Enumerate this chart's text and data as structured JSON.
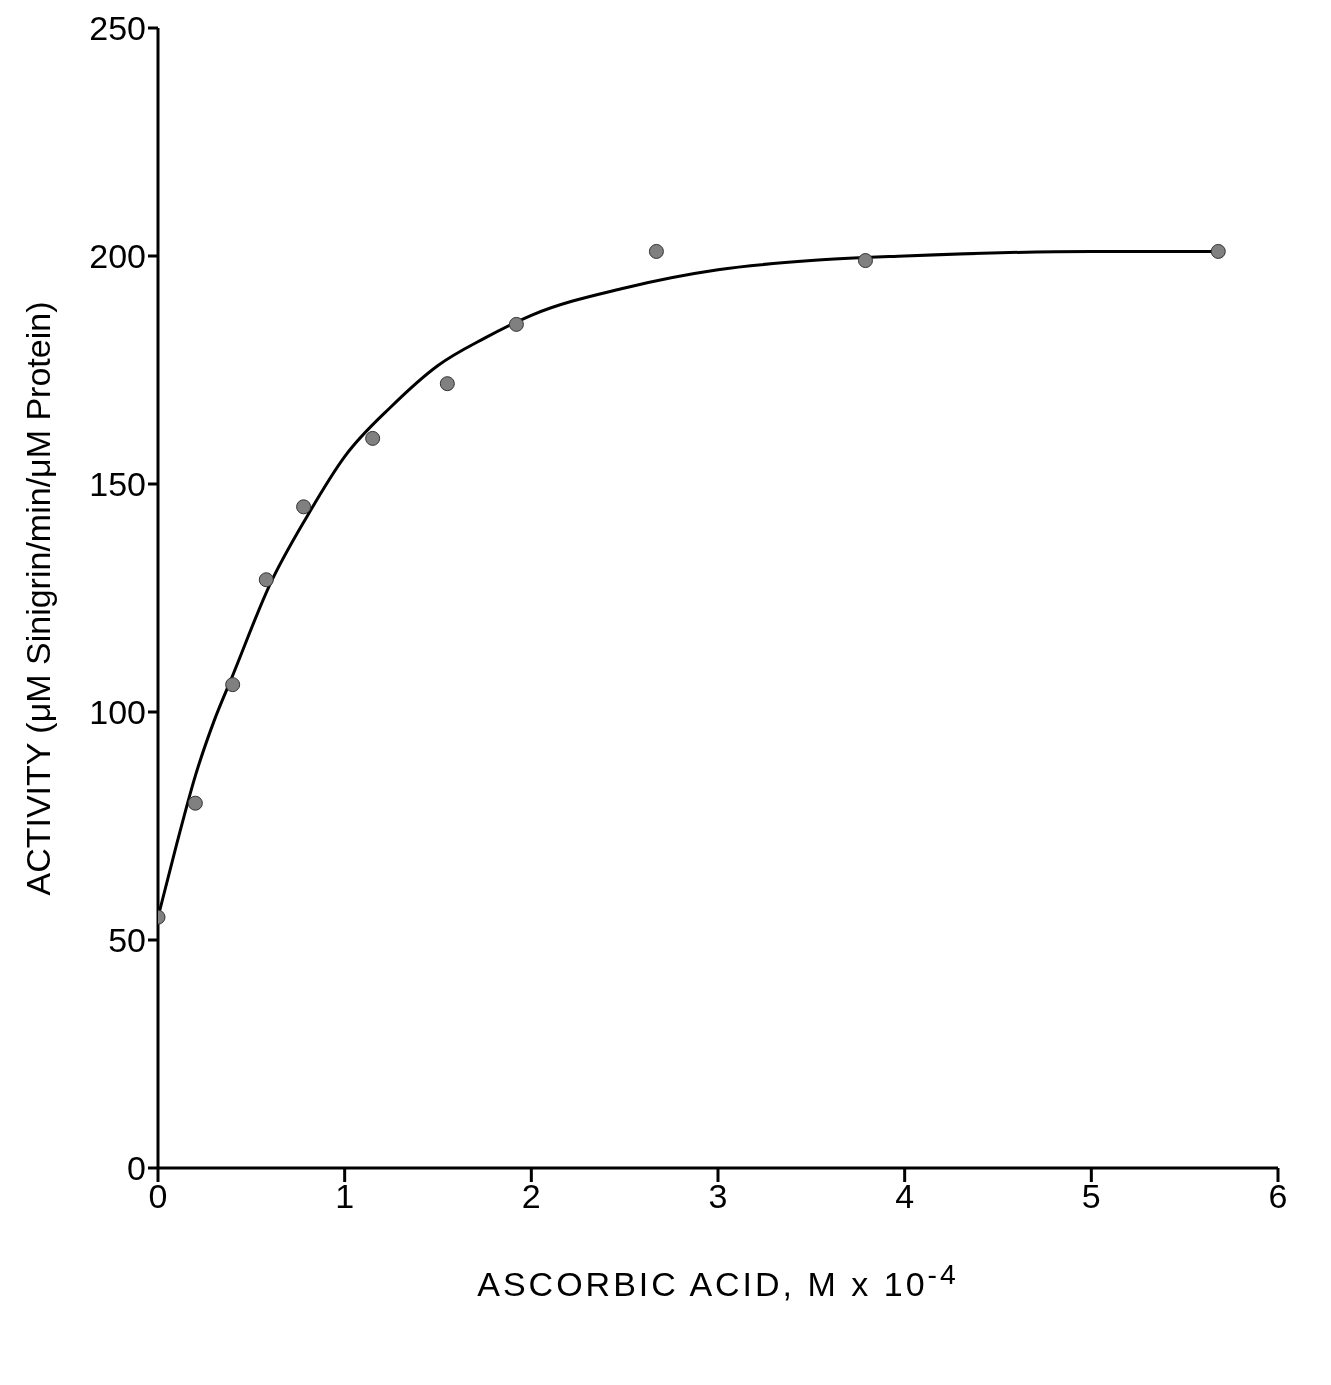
{
  "chart_data": {
    "type": "scatter",
    "xlabel": "ASCORBIC ACID, M x 10$^{-4}$",
    "ylabel": "ACTIVITY (μM Sinigrin/min/μM Protein)",
    "xlim": [
      0,
      6
    ],
    "xticks": [
      0,
      1,
      2,
      3,
      4,
      5,
      6
    ],
    "ylim": [
      0,
      250
    ],
    "yticks": [
      0,
      50,
      100,
      150,
      200,
      250
    ],
    "grid": false,
    "legend": false,
    "series": [
      {
        "marker": "circle",
        "color": "#808080",
        "x": [
          0,
          0.2,
          0.4,
          0.58,
          0.78,
          1.15,
          1.55,
          1.92,
          2.67,
          3.79,
          5.68
        ],
        "values": [
          55,
          80,
          106,
          129,
          145,
          160,
          172,
          185,
          201,
          199,
          201
        ]
      },
      {
        "type": "line",
        "marker": "none",
        "color": "#000000",
        "x": [
          0,
          0.1,
          0.2,
          0.3,
          0.4,
          0.6,
          0.8,
          1,
          1.25,
          1.5,
          1.75,
          2,
          2.5,
          3,
          3.5,
          4,
          5,
          5.68
        ],
        "values": [
          55,
          71,
          86,
          98,
          108,
          128,
          143,
          156,
          167,
          176,
          182,
          187,
          193,
          197,
          199,
          200,
          201,
          201
        ]
      }
    ]
  }
}
